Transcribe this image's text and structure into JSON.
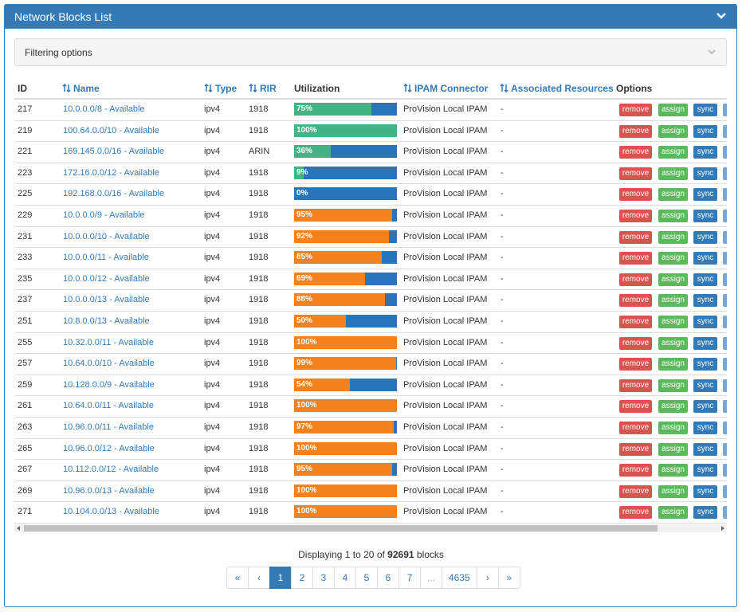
{
  "header": {
    "title": "Network Blocks List"
  },
  "filter": {
    "title": "Filtering options"
  },
  "table": {
    "columns": [
      {
        "label": "ID",
        "sortable": false
      },
      {
        "label": "Name",
        "sortable": true
      },
      {
        "label": "Type",
        "sortable": true
      },
      {
        "label": "RIR",
        "sortable": true
      },
      {
        "label": "Utilization",
        "sortable": false
      },
      {
        "label": "IPAM Connector",
        "sortable": true
      },
      {
        "label": "Associated Resources",
        "sortable": true
      },
      {
        "label": "Options",
        "sortable": false
      }
    ],
    "utilization_scale": [
      0,
      100
    ],
    "bar_background": "#2a75b8",
    "actions": [
      {
        "label": "remove",
        "color": "#d9534f"
      },
      {
        "label": "assign",
        "color": "#5cb85c"
      },
      {
        "label": "sync",
        "color": "#337ab7"
      }
    ],
    "rows": [
      {
        "id": 217,
        "name": "10.0.0.0/8 - Available",
        "type": "ipv4",
        "rir": "1918",
        "utilization": {
          "value": 75,
          "label": "75%",
          "color": "#44b384"
        },
        "connector": "ProVision Local IPAM",
        "resources": "-"
      },
      {
        "id": 219,
        "name": "100.64.0.0/10 - Available",
        "type": "ipv4",
        "rir": "1918",
        "utilization": {
          "value": 100,
          "label": "100%",
          "color": "#44b384"
        },
        "connector": "ProVision Local IPAM",
        "resources": "-"
      },
      {
        "id": 221,
        "name": "169.145.0.0/16 - Available",
        "type": "ipv4",
        "rir": "ARIN",
        "utilization": {
          "value": 36,
          "label": "36%",
          "color": "#44b384"
        },
        "connector": "ProVision Local IPAM",
        "resources": "-"
      },
      {
        "id": 223,
        "name": "172.16.0.0/12 - Available",
        "type": "ipv4",
        "rir": "1918",
        "utilization": {
          "value": 9,
          "label": "9%",
          "color": "#44b384"
        },
        "connector": "ProVision Local IPAM",
        "resources": "-"
      },
      {
        "id": 225,
        "name": "192.168.0.0/16 - Available",
        "type": "ipv4",
        "rir": "1918",
        "utilization": {
          "value": 0,
          "label": "0%",
          "color": "#44b384"
        },
        "connector": "ProVision Local IPAM",
        "resources": "-"
      },
      {
        "id": 229,
        "name": "10.0.0.0/9 - Available",
        "type": "ipv4",
        "rir": "1918",
        "utilization": {
          "value": 95,
          "label": "95%",
          "color": "#f5821f"
        },
        "connector": "ProVision Local IPAM",
        "resources": "-"
      },
      {
        "id": 231,
        "name": "10.0.0.0/10 - Available",
        "type": "ipv4",
        "rir": "1918",
        "utilization": {
          "value": 92,
          "label": "92%",
          "color": "#f5821f"
        },
        "connector": "ProVision Local IPAM",
        "resources": "-"
      },
      {
        "id": 233,
        "name": "10.0.0.0/11 - Available",
        "type": "ipv4",
        "rir": "1918",
        "utilization": {
          "value": 85,
          "label": "85%",
          "color": "#f5821f"
        },
        "connector": "ProVision Local IPAM",
        "resources": "-"
      },
      {
        "id": 235,
        "name": "10.0.0.0/12 - Available",
        "type": "ipv4",
        "rir": "1918",
        "utilization": {
          "value": 69,
          "label": "69%",
          "color": "#f5821f"
        },
        "connector": "ProVision Local IPAM",
        "resources": "-"
      },
      {
        "id": 237,
        "name": "10.0.0.0/13 - Available",
        "type": "ipv4",
        "rir": "1918",
        "utilization": {
          "value": 88,
          "label": "88%",
          "color": "#f5821f"
        },
        "connector": "ProVision Local IPAM",
        "resources": "-"
      },
      {
        "id": 251,
        "name": "10.8.0.0/13 - Available",
        "type": "ipv4",
        "rir": "1918",
        "utilization": {
          "value": 50,
          "label": "50%",
          "color": "#f5821f"
        },
        "connector": "ProVision Local IPAM",
        "resources": "-"
      },
      {
        "id": 255,
        "name": "10.32.0.0/11 - Available",
        "type": "ipv4",
        "rir": "1918",
        "utilization": {
          "value": 100,
          "label": "100%",
          "color": "#f5821f"
        },
        "connector": "ProVision Local IPAM",
        "resources": "-"
      },
      {
        "id": 257,
        "name": "10.64.0.0/10 - Available",
        "type": "ipv4",
        "rir": "1918",
        "utilization": {
          "value": 99,
          "label": "99%",
          "color": "#f5821f"
        },
        "connector": "ProVision Local IPAM",
        "resources": "-"
      },
      {
        "id": 259,
        "name": "10.128.0.0/9 - Available",
        "type": "ipv4",
        "rir": "1918",
        "utilization": {
          "value": 54,
          "label": "54%",
          "color": "#f5821f"
        },
        "connector": "ProVision Local IPAM",
        "resources": "-"
      },
      {
        "id": 261,
        "name": "10.64.0.0/11 - Available",
        "type": "ipv4",
        "rir": "1918",
        "utilization": {
          "value": 100,
          "label": "100%",
          "color": "#f5821f"
        },
        "connector": "ProVision Local IPAM",
        "resources": "-"
      },
      {
        "id": 263,
        "name": "10.96.0.0/11 - Available",
        "type": "ipv4",
        "rir": "1918",
        "utilization": {
          "value": 97,
          "label": "97%",
          "color": "#f5821f"
        },
        "connector": "ProVision Local IPAM",
        "resources": "-"
      },
      {
        "id": 265,
        "name": "10.96.0.0/12 - Available",
        "type": "ipv4",
        "rir": "1918",
        "utilization": {
          "value": 100,
          "label": "100%",
          "color": "#f5821f"
        },
        "connector": "ProVision Local IPAM",
        "resources": "-"
      },
      {
        "id": 267,
        "name": "10.112.0.0/12 - Available",
        "type": "ipv4",
        "rir": "1918",
        "utilization": {
          "value": 95,
          "label": "95%",
          "color": "#f5821f"
        },
        "connector": "ProVision Local IPAM",
        "resources": "-"
      },
      {
        "id": 269,
        "name": "10.96.0.0/13 - Available",
        "type": "ipv4",
        "rir": "1918",
        "utilization": {
          "value": 100,
          "label": "100%",
          "color": "#f5821f"
        },
        "connector": "ProVision Local IPAM",
        "resources": "-"
      },
      {
        "id": 271,
        "name": "10.104.0.0/13 - Available",
        "type": "ipv4",
        "rir": "1918",
        "utilization": {
          "value": 100,
          "label": "100%",
          "color": "#f5821f"
        },
        "connector": "ProVision Local IPAM",
        "resources": "-"
      }
    ]
  },
  "footer": {
    "summary": [
      "Displaying 1 to 20 of",
      "92691",
      "blocks"
    ],
    "pages": [
      {
        "label": "«",
        "active": false
      },
      {
        "label": "‹",
        "active": false
      },
      {
        "label": "1",
        "active": true
      },
      {
        "label": "2",
        "active": false
      },
      {
        "label": "3",
        "active": false
      },
      {
        "label": "4",
        "active": false
      },
      {
        "label": "5",
        "active": false
      },
      {
        "label": "6",
        "active": false
      },
      {
        "label": "7",
        "active": false
      },
      {
        "label": "...",
        "active": false
      },
      {
        "label": "4635",
        "active": false
      },
      {
        "label": "›",
        "active": false
      },
      {
        "label": "»",
        "active": false
      }
    ]
  }
}
